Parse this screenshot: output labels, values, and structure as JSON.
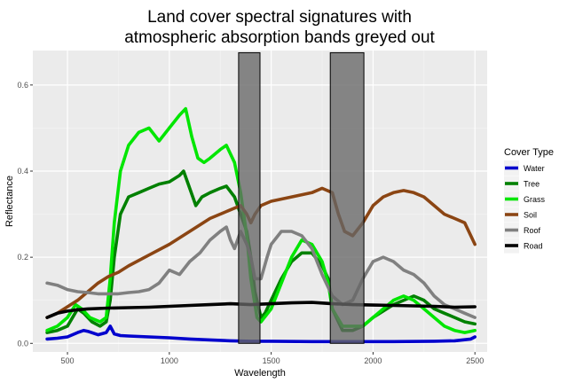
{
  "chart_data": {
    "type": "line",
    "title_lines": [
      "Land cover spectral signatures with",
      "atmospheric absorption bands greyed out"
    ],
    "xlabel": "Wavelength",
    "ylabel": "Reflectance",
    "xlim": [
      330,
      2560
    ],
    "ylim": [
      -0.02,
      0.68
    ],
    "xticks": [
      500,
      1000,
      1500,
      2000,
      2500
    ],
    "yticks": [
      0.0,
      0.2,
      0.4,
      0.6
    ],
    "ytick_labels": [
      "0.0",
      "0.2",
      "0.4",
      "0.6"
    ],
    "grid": true,
    "legend": {
      "title": "Cover Type",
      "placement": "right"
    },
    "absorption_bands": [
      {
        "x": [
          1340,
          1445
        ],
        "y": [
          0.0,
          0.675
        ]
      },
      {
        "x": [
          1790,
          1955
        ],
        "y": [
          0.0,
          0.675
        ]
      }
    ],
    "series": [
      {
        "name": "Water",
        "color": "#0000cd",
        "points": [
          [
            400,
            0.01
          ],
          [
            450,
            0.012
          ],
          [
            500,
            0.015
          ],
          [
            550,
            0.025
          ],
          [
            580,
            0.03
          ],
          [
            600,
            0.028
          ],
          [
            650,
            0.02
          ],
          [
            690,
            0.025
          ],
          [
            710,
            0.04
          ],
          [
            730,
            0.022
          ],
          [
            760,
            0.018
          ],
          [
            800,
            0.017
          ],
          [
            900,
            0.015
          ],
          [
            1000,
            0.013
          ],
          [
            1100,
            0.01
          ],
          [
            1200,
            0.008
          ],
          [
            1300,
            0.006
          ],
          [
            1400,
            0.005
          ],
          [
            1500,
            0.005
          ],
          [
            1700,
            0.004
          ],
          [
            1900,
            0.004
          ],
          [
            2100,
            0.004
          ],
          [
            2300,
            0.005
          ],
          [
            2400,
            0.006
          ],
          [
            2480,
            0.01
          ],
          [
            2500,
            0.015
          ]
        ]
      },
      {
        "name": "Tree",
        "color": "#008000",
        "points": [
          [
            400,
            0.025
          ],
          [
            450,
            0.03
          ],
          [
            500,
            0.04
          ],
          [
            550,
            0.08
          ],
          [
            580,
            0.07
          ],
          [
            620,
            0.05
          ],
          [
            660,
            0.04
          ],
          [
            690,
            0.05
          ],
          [
            710,
            0.1
          ],
          [
            730,
            0.2
          ],
          [
            760,
            0.3
          ],
          [
            800,
            0.34
          ],
          [
            850,
            0.35
          ],
          [
            900,
            0.36
          ],
          [
            950,
            0.37
          ],
          [
            1000,
            0.375
          ],
          [
            1050,
            0.39
          ],
          [
            1070,
            0.4
          ],
          [
            1100,
            0.36
          ],
          [
            1130,
            0.32
          ],
          [
            1160,
            0.34
          ],
          [
            1200,
            0.35
          ],
          [
            1250,
            0.36
          ],
          [
            1280,
            0.365
          ],
          [
            1320,
            0.34
          ],
          [
            1350,
            0.3
          ],
          [
            1380,
            0.26
          ],
          [
            1400,
            0.2
          ],
          [
            1420,
            0.12
          ],
          [
            1450,
            0.06
          ],
          [
            1470,
            0.07
          ],
          [
            1500,
            0.1
          ],
          [
            1550,
            0.15
          ],
          [
            1600,
            0.19
          ],
          [
            1650,
            0.21
          ],
          [
            1700,
            0.21
          ],
          [
            1750,
            0.18
          ],
          [
            1780,
            0.15
          ],
          [
            1800,
            0.08
          ],
          [
            1850,
            0.03
          ],
          [
            1900,
            0.03
          ],
          [
            1950,
            0.04
          ],
          [
            2000,
            0.06
          ],
          [
            2100,
            0.09
          ],
          [
            2200,
            0.11
          ],
          [
            2250,
            0.1
          ],
          [
            2300,
            0.08
          ],
          [
            2350,
            0.07
          ],
          [
            2400,
            0.06
          ],
          [
            2450,
            0.05
          ],
          [
            2500,
            0.045
          ]
        ]
      },
      {
        "name": "Grass",
        "color": "#00e600",
        "points": [
          [
            400,
            0.03
          ],
          [
            450,
            0.04
          ],
          [
            500,
            0.06
          ],
          [
            540,
            0.09
          ],
          [
            570,
            0.08
          ],
          [
            610,
            0.06
          ],
          [
            660,
            0.05
          ],
          [
            690,
            0.06
          ],
          [
            710,
            0.15
          ],
          [
            730,
            0.28
          ],
          [
            760,
            0.4
          ],
          [
            800,
            0.46
          ],
          [
            850,
            0.49
          ],
          [
            900,
            0.5
          ],
          [
            950,
            0.47
          ],
          [
            1000,
            0.5
          ],
          [
            1050,
            0.53
          ],
          [
            1080,
            0.545
          ],
          [
            1110,
            0.48
          ],
          [
            1140,
            0.43
          ],
          [
            1170,
            0.42
          ],
          [
            1200,
            0.43
          ],
          [
            1250,
            0.45
          ],
          [
            1280,
            0.46
          ],
          [
            1320,
            0.42
          ],
          [
            1350,
            0.35
          ],
          [
            1380,
            0.25
          ],
          [
            1400,
            0.15
          ],
          [
            1430,
            0.06
          ],
          [
            1450,
            0.05
          ],
          [
            1500,
            0.08
          ],
          [
            1550,
            0.14
          ],
          [
            1600,
            0.2
          ],
          [
            1650,
            0.24
          ],
          [
            1700,
            0.23
          ],
          [
            1750,
            0.19
          ],
          [
            1780,
            0.14
          ],
          [
            1800,
            0.08
          ],
          [
            1850,
            0.04
          ],
          [
            1950,
            0.04
          ],
          [
            2000,
            0.06
          ],
          [
            2050,
            0.08
          ],
          [
            2100,
            0.1
          ],
          [
            2150,
            0.11
          ],
          [
            2200,
            0.1
          ],
          [
            2250,
            0.08
          ],
          [
            2300,
            0.06
          ],
          [
            2350,
            0.04
          ],
          [
            2400,
            0.03
          ],
          [
            2450,
            0.025
          ],
          [
            2500,
            0.03
          ]
        ]
      },
      {
        "name": "Soil",
        "color": "#8b4513",
        "points": [
          [
            400,
            0.06
          ],
          [
            450,
            0.07
          ],
          [
            500,
            0.085
          ],
          [
            550,
            0.1
          ],
          [
            600,
            0.12
          ],
          [
            650,
            0.14
          ],
          [
            700,
            0.155
          ],
          [
            750,
            0.165
          ],
          [
            800,
            0.18
          ],
          [
            900,
            0.205
          ],
          [
            1000,
            0.23
          ],
          [
            1100,
            0.26
          ],
          [
            1200,
            0.29
          ],
          [
            1300,
            0.31
          ],
          [
            1350,
            0.32
          ],
          [
            1380,
            0.3
          ],
          [
            1400,
            0.28
          ],
          [
            1420,
            0.3
          ],
          [
            1450,
            0.32
          ],
          [
            1500,
            0.33
          ],
          [
            1600,
            0.34
          ],
          [
            1700,
            0.35
          ],
          [
            1750,
            0.36
          ],
          [
            1800,
            0.35
          ],
          [
            1830,
            0.3
          ],
          [
            1860,
            0.26
          ],
          [
            1900,
            0.25
          ],
          [
            1950,
            0.28
          ],
          [
            2000,
            0.32
          ],
          [
            2050,
            0.34
          ],
          [
            2100,
            0.35
          ],
          [
            2150,
            0.355
          ],
          [
            2200,
            0.35
          ],
          [
            2250,
            0.34
          ],
          [
            2300,
            0.32
          ],
          [
            2350,
            0.3
          ],
          [
            2400,
            0.29
          ],
          [
            2450,
            0.28
          ],
          [
            2480,
            0.25
          ],
          [
            2500,
            0.23
          ]
        ]
      },
      {
        "name": "Roof",
        "color": "#808080",
        "points": [
          [
            400,
            0.14
          ],
          [
            450,
            0.135
          ],
          [
            500,
            0.125
          ],
          [
            550,
            0.12
          ],
          [
            600,
            0.118
          ],
          [
            650,
            0.115
          ],
          [
            700,
            0.115
          ],
          [
            750,
            0.115
          ],
          [
            800,
            0.118
          ],
          [
            850,
            0.12
          ],
          [
            900,
            0.125
          ],
          [
            950,
            0.14
          ],
          [
            1000,
            0.17
          ],
          [
            1050,
            0.16
          ],
          [
            1100,
            0.19
          ],
          [
            1150,
            0.21
          ],
          [
            1200,
            0.24
          ],
          [
            1250,
            0.26
          ],
          [
            1280,
            0.27
          ],
          [
            1300,
            0.24
          ],
          [
            1320,
            0.22
          ],
          [
            1350,
            0.26
          ],
          [
            1380,
            0.23
          ],
          [
            1400,
            0.2
          ],
          [
            1420,
            0.15
          ],
          [
            1450,
            0.15
          ],
          [
            1480,
            0.2
          ],
          [
            1500,
            0.23
          ],
          [
            1550,
            0.26
          ],
          [
            1600,
            0.26
          ],
          [
            1650,
            0.25
          ],
          [
            1700,
            0.22
          ],
          [
            1750,
            0.16
          ],
          [
            1800,
            0.11
          ],
          [
            1850,
            0.09
          ],
          [
            1900,
            0.1
          ],
          [
            1950,
            0.15
          ],
          [
            2000,
            0.19
          ],
          [
            2050,
            0.2
          ],
          [
            2100,
            0.19
          ],
          [
            2150,
            0.17
          ],
          [
            2200,
            0.16
          ],
          [
            2250,
            0.14
          ],
          [
            2300,
            0.11
          ],
          [
            2350,
            0.09
          ],
          [
            2400,
            0.08
          ],
          [
            2450,
            0.07
          ],
          [
            2500,
            0.06
          ]
        ]
      },
      {
        "name": "Road",
        "color": "#000000",
        "points": [
          [
            400,
            0.06
          ],
          [
            450,
            0.07
          ],
          [
            500,
            0.075
          ],
          [
            550,
            0.078
          ],
          [
            600,
            0.08
          ],
          [
            700,
            0.082
          ],
          [
            800,
            0.083
          ],
          [
            900,
            0.084
          ],
          [
            1000,
            0.086
          ],
          [
            1100,
            0.088
          ],
          [
            1200,
            0.09
          ],
          [
            1300,
            0.092
          ],
          [
            1400,
            0.09
          ],
          [
            1500,
            0.092
          ],
          [
            1600,
            0.094
          ],
          [
            1700,
            0.095
          ],
          [
            1800,
            0.092
          ],
          [
            1900,
            0.09
          ],
          [
            2000,
            0.089
          ],
          [
            2100,
            0.088
          ],
          [
            2200,
            0.087
          ],
          [
            2300,
            0.086
          ],
          [
            2400,
            0.084
          ],
          [
            2500,
            0.085
          ]
        ]
      }
    ]
  }
}
